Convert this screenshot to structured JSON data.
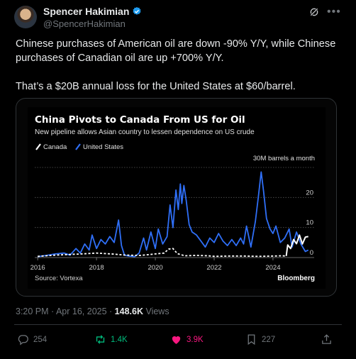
{
  "author": {
    "name": "Spencer Hakimian",
    "handle": "@SpencerHakimian"
  },
  "tweet_text": "Chinese purchases of American oil are down -90% Y/Y, while Chinese purchases of Canadian oil are up +700% Y/Y.\n\nThat’s a $20B annual loss for the United States at $60/barrel.",
  "meta": {
    "time": "3:20 PM · Apr 16, 2025 · ",
    "views_count": "148.6K",
    "views_label": " Views"
  },
  "actions": {
    "replies": "254",
    "reposts": "1.4K",
    "likes": "3.9K",
    "bookmarks": "227"
  },
  "colors": {
    "accent_blue": "#1d9bf0",
    "repost_green": "#00ba7c",
    "like_pink": "#f91880",
    "series_us": "#2f6ff7",
    "series_canada": "#ffffff"
  },
  "chart_data": {
    "type": "line",
    "title": "China Pivots to Canada From US for Oil",
    "subtitle": "New pipeline allows Asian country to lessen dependence on US crude",
    "unit_label": "30M barrels a month",
    "source": "Source: Vortexa",
    "brand": "Bloomberg",
    "xlim": [
      2015.9,
      2025.4
    ],
    "ylim": [
      0,
      30
    ],
    "x_ticks": [
      "2016",
      "2018",
      "2020",
      "2022",
      "2024"
    ],
    "y_ticks": [
      "0",
      "10",
      "20"
    ],
    "grid": true,
    "legend": "top-left",
    "series": [
      {
        "name": "Canada",
        "color": "#ffffff",
        "dashed_until": 2024.45,
        "points": [
          [
            2016.0,
            0.4
          ],
          [
            2016.3,
            0.6
          ],
          [
            2016.6,
            0.8
          ],
          [
            2017.0,
            1.0
          ],
          [
            2017.5,
            1.2
          ],
          [
            2018.0,
            1.5
          ],
          [
            2018.5,
            1.2
          ],
          [
            2019.0,
            0.8
          ],
          [
            2019.5,
            0.7
          ],
          [
            2019.8,
            1.0
          ],
          [
            2020.0,
            1.2
          ],
          [
            2020.3,
            1.5
          ],
          [
            2020.45,
            2.8
          ],
          [
            2020.6,
            3.0
          ],
          [
            2020.75,
            1.3
          ],
          [
            2021.0,
            0.6
          ],
          [
            2021.4,
            0.7
          ],
          [
            2021.8,
            0.6
          ],
          [
            2022.0,
            0.4
          ],
          [
            2022.5,
            0.5
          ],
          [
            2023.0,
            0.5
          ],
          [
            2023.5,
            0.4
          ],
          [
            2024.0,
            0.5
          ],
          [
            2024.3,
            0.6
          ],
          [
            2024.45,
            0.5
          ],
          [
            2024.5,
            4.2
          ],
          [
            2024.6,
            3.0
          ],
          [
            2024.7,
            6.0
          ],
          [
            2024.8,
            4.6
          ],
          [
            2024.9,
            7.5
          ],
          [
            2025.0,
            4.5
          ],
          [
            2025.1,
            6.8
          ],
          [
            2025.2,
            7.0
          ]
        ]
      },
      {
        "name": "United States",
        "color": "#2f6ff7",
        "points": [
          [
            2016.0,
            0.3
          ],
          [
            2016.3,
            0.7
          ],
          [
            2016.6,
            1.2
          ],
          [
            2016.9,
            1.5
          ],
          [
            2017.1,
            0.8
          ],
          [
            2017.3,
            3.0
          ],
          [
            2017.45,
            1.5
          ],
          [
            2017.6,
            4.5
          ],
          [
            2017.75,
            2.5
          ],
          [
            2017.85,
            7.5
          ],
          [
            2018.0,
            3.0
          ],
          [
            2018.15,
            6.0
          ],
          [
            2018.3,
            4.5
          ],
          [
            2018.45,
            7.0
          ],
          [
            2018.6,
            5.0
          ],
          [
            2018.75,
            12.5
          ],
          [
            2018.85,
            4.0
          ],
          [
            2018.95,
            0.8
          ],
          [
            2019.1,
            0.5
          ],
          [
            2019.3,
            0.3
          ],
          [
            2019.45,
            1.5
          ],
          [
            2019.6,
            6.5
          ],
          [
            2019.7,
            2.5
          ],
          [
            2019.85,
            8.5
          ],
          [
            2020.0,
            3.0
          ],
          [
            2020.1,
            9.5
          ],
          [
            2020.25,
            4.5
          ],
          [
            2020.4,
            7.0
          ],
          [
            2020.5,
            17.5
          ],
          [
            2020.6,
            10.0
          ],
          [
            2020.7,
            22.5
          ],
          [
            2020.78,
            16.0
          ],
          [
            2020.85,
            24.5
          ],
          [
            2020.9,
            18.0
          ],
          [
            2020.97,
            24.0
          ],
          [
            2021.05,
            19.0
          ],
          [
            2021.15,
            11.0
          ],
          [
            2021.25,
            8.5
          ],
          [
            2021.4,
            7.5
          ],
          [
            2021.55,
            5.5
          ],
          [
            2021.7,
            3.5
          ],
          [
            2021.85,
            6.5
          ],
          [
            2022.0,
            5.0
          ],
          [
            2022.15,
            8.0
          ],
          [
            2022.3,
            5.5
          ],
          [
            2022.45,
            4.0
          ],
          [
            2022.6,
            6.0
          ],
          [
            2022.75,
            4.0
          ],
          [
            2022.9,
            6.5
          ],
          [
            2023.0,
            4.5
          ],
          [
            2023.1,
            10.5
          ],
          [
            2023.25,
            3.5
          ],
          [
            2023.4,
            12.0
          ],
          [
            2023.5,
            20.0
          ],
          [
            2023.6,
            28.5
          ],
          [
            2023.68,
            22.0
          ],
          [
            2023.78,
            13.0
          ],
          [
            2023.9,
            9.5
          ],
          [
            2024.0,
            8.0
          ],
          [
            2024.1,
            10.5
          ],
          [
            2024.25,
            5.0
          ],
          [
            2024.4,
            6.5
          ],
          [
            2024.55,
            9.5
          ],
          [
            2024.65,
            3.5
          ],
          [
            2024.8,
            8.5
          ],
          [
            2024.95,
            4.5
          ],
          [
            2025.1,
            2.0
          ],
          [
            2025.2,
            2.5
          ]
        ]
      }
    ]
  }
}
